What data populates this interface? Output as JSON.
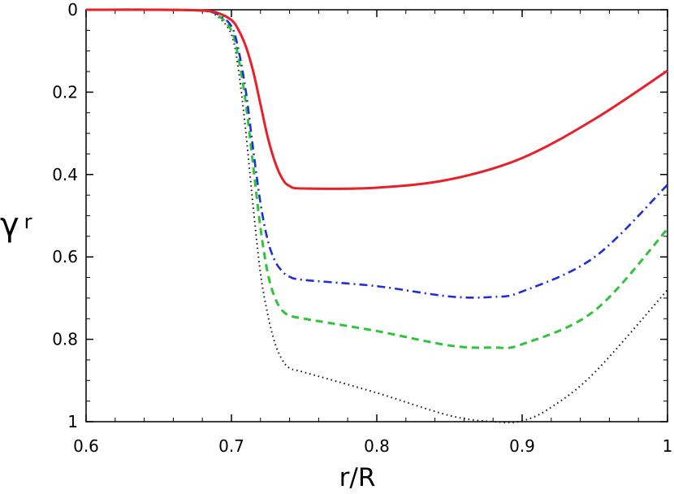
{
  "chart_data": {
    "type": "line",
    "xlabel": "r/R",
    "ylabel": "γ",
    "ylabel_subscript": "r",
    "xlim": [
      0.6,
      1.0
    ],
    "ylim": [
      0,
      1
    ],
    "y_inverted": true,
    "grid": false,
    "legend": "none",
    "xticks": [
      0.6,
      0.7,
      0.8,
      0.9,
      1.0
    ],
    "xtick_labels": [
      "0.6",
      "0.7",
      "0.8",
      "0.9",
      "1"
    ],
    "yticks": [
      0,
      0.2,
      0.4,
      0.6,
      0.8,
      1.0
    ],
    "ytick_labels": [
      "0",
      "0.2",
      "0.4",
      "0.6",
      "0.8",
      "1"
    ],
    "series": [
      {
        "style": "solid",
        "color": "#e8202a",
        "x": [
          0.6,
          0.65,
          0.68,
          0.69,
          0.7,
          0.705,
          0.71,
          0.715,
          0.72,
          0.725,
          0.73,
          0.735,
          0.74,
          0.75,
          0.8,
          0.85,
          0.9,
          0.95,
          1.0
        ],
        "y": [
          0.0,
          0.0,
          0.002,
          0.007,
          0.025,
          0.05,
          0.09,
          0.15,
          0.23,
          0.31,
          0.37,
          0.41,
          0.428,
          0.434,
          0.432,
          0.412,
          0.36,
          0.265,
          0.148
        ]
      },
      {
        "style": "dash-dot",
        "color": "#1e2fd6",
        "x": [
          0.6,
          0.65,
          0.68,
          0.69,
          0.7,
          0.705,
          0.71,
          0.715,
          0.72,
          0.725,
          0.73,
          0.735,
          0.74,
          0.75,
          0.8,
          0.85,
          0.88,
          0.9,
          0.95,
          1.0
        ],
        "y": [
          0.0,
          0.0,
          0.002,
          0.01,
          0.04,
          0.1,
          0.2,
          0.34,
          0.47,
          0.56,
          0.61,
          0.635,
          0.648,
          0.656,
          0.671,
          0.696,
          0.697,
          0.684,
          0.6,
          0.425
        ]
      },
      {
        "style": "dashed",
        "color": "#2fc43b",
        "x": [
          0.6,
          0.65,
          0.68,
          0.69,
          0.7,
          0.705,
          0.71,
          0.715,
          0.72,
          0.725,
          0.73,
          0.735,
          0.74,
          0.75,
          0.8,
          0.85,
          0.88,
          0.9,
          0.95,
          1.0
        ],
        "y": [
          0.0,
          0.0,
          0.002,
          0.012,
          0.05,
          0.12,
          0.23,
          0.38,
          0.53,
          0.64,
          0.7,
          0.73,
          0.742,
          0.75,
          0.78,
          0.815,
          0.82,
          0.812,
          0.73,
          0.532
        ]
      },
      {
        "style": "dotted",
        "color": "#111111",
        "x": [
          0.6,
          0.65,
          0.68,
          0.69,
          0.7,
          0.705,
          0.71,
          0.715,
          0.72,
          0.725,
          0.73,
          0.735,
          0.74,
          0.75,
          0.8,
          0.85,
          0.88,
          0.9,
          0.92,
          0.95,
          1.0
        ],
        "y": [
          0.0,
          0.0,
          0.003,
          0.015,
          0.06,
          0.15,
          0.3,
          0.48,
          0.64,
          0.74,
          0.81,
          0.85,
          0.87,
          0.88,
          0.93,
          0.985,
          1.0,
          0.998,
          0.965,
          0.88,
          0.68
        ]
      }
    ]
  }
}
